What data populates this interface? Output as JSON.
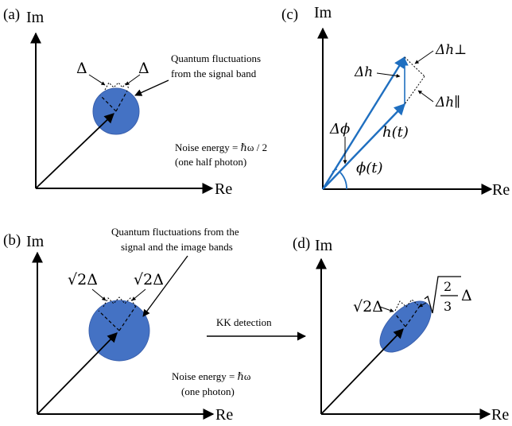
{
  "colors": {
    "disk": "#4472C4",
    "disk_edge": "#3a60ad",
    "vector_blue": "#1f6fc0",
    "ink": "#000000"
  },
  "panel_a": {
    "tag": "(a)",
    "axis_im": "Im",
    "axis_re": "Re",
    "delta_left": "Δ",
    "delta_right": "Δ",
    "note_line1": "Quantum fluctuations",
    "note_line2": "from the signal band",
    "energy_line1": "Noise energy = ℏω / 2",
    "energy_line2": "(one half photon)"
  },
  "panel_b": {
    "tag": "(b)",
    "axis_im": "Im",
    "axis_re": "Re",
    "delta_left": "√2Δ",
    "delta_right": "√2Δ",
    "note_line1": "Quantum fluctuations from the",
    "note_line2": "signal and the image bands",
    "energy_line1": "Noise energy = ℏω",
    "energy_line2": "(one photon)"
  },
  "panel_c": {
    "tag": "(c)",
    "axis_im": "Im",
    "axis_re": "Re",
    "dh": "Δh",
    "dh_perp": "Δh⊥",
    "dh_par": "Δh∥",
    "dphi": "Δϕ",
    "ht": "h(t)",
    "phit": "ϕ(t)"
  },
  "panel_d": {
    "tag": "(d)",
    "axis_im": "Im",
    "axis_re": "Re",
    "delta_left": "√2Δ",
    "frac_num": "2",
    "frac_den": "3",
    "delta_right_tail": "Δ"
  },
  "kk_label": "KK detection"
}
